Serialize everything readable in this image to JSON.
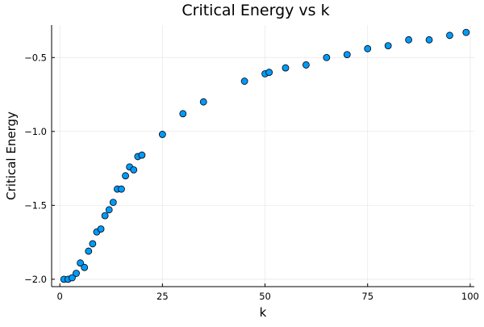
{
  "chart_data": {
    "type": "scatter",
    "title": "Critical Energy vs k",
    "xlabel": "k",
    "ylabel": "Critical Energy",
    "xlim": [
      -2,
      101
    ],
    "ylim": [
      -2.05,
      -0.28
    ],
    "xticks": [
      0,
      25,
      50,
      75,
      100
    ],
    "xtick_labels": [
      "0",
      "25",
      "50",
      "75",
      "100"
    ],
    "yticks": [
      -2.0,
      -1.5,
      -1.0,
      -0.5
    ],
    "ytick_labels": [
      "−2.0",
      "−1.5",
      "−1.0",
      "−0.5"
    ],
    "grid": true,
    "legend": false,
    "marker_color": "#009AFA",
    "marker_edge_color": "#000000",
    "points": [
      {
        "x": 1,
        "y": -2.0
      },
      {
        "x": 2,
        "y": -2.0
      },
      {
        "x": 3,
        "y": -1.99
      },
      {
        "x": 4,
        "y": -1.96
      },
      {
        "x": 5,
        "y": -1.89
      },
      {
        "x": 6,
        "y": -1.92
      },
      {
        "x": 7,
        "y": -1.81
      },
      {
        "x": 8,
        "y": -1.76
      },
      {
        "x": 9,
        "y": -1.68
      },
      {
        "x": 10,
        "y": -1.66
      },
      {
        "x": 11,
        "y": -1.57
      },
      {
        "x": 12,
        "y": -1.53
      },
      {
        "x": 13,
        "y": -1.48
      },
      {
        "x": 14,
        "y": -1.39
      },
      {
        "x": 15,
        "y": -1.39
      },
      {
        "x": 16,
        "y": -1.3
      },
      {
        "x": 17,
        "y": -1.24
      },
      {
        "x": 18,
        "y": -1.26
      },
      {
        "x": 19,
        "y": -1.17
      },
      {
        "x": 20,
        "y": -1.16
      },
      {
        "x": 25,
        "y": -1.02
      },
      {
        "x": 30,
        "y": -0.88
      },
      {
        "x": 35,
        "y": -0.8
      },
      {
        "x": 45,
        "y": -0.66
      },
      {
        "x": 50,
        "y": -0.61
      },
      {
        "x": 51,
        "y": -0.6
      },
      {
        "x": 55,
        "y": -0.57
      },
      {
        "x": 60,
        "y": -0.55
      },
      {
        "x": 65,
        "y": -0.5
      },
      {
        "x": 70,
        "y": -0.48
      },
      {
        "x": 75,
        "y": -0.44
      },
      {
        "x": 80,
        "y": -0.42
      },
      {
        "x": 85,
        "y": -0.38
      },
      {
        "x": 90,
        "y": -0.38
      },
      {
        "x": 95,
        "y": -0.35
      },
      {
        "x": 99,
        "y": -0.33
      }
    ]
  }
}
